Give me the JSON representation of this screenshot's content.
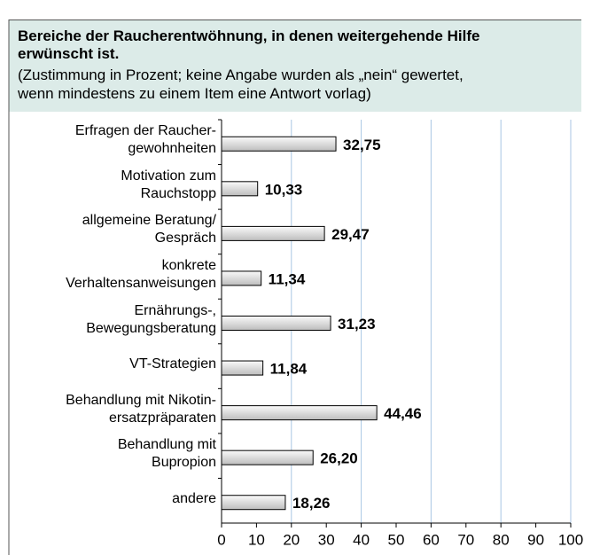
{
  "chart_data": {
    "type": "bar",
    "orientation": "horizontal",
    "title": "Bereiche der Raucherentwöhnung, in denen weitergehende Hilfe\nerwünscht ist.",
    "subtitle": "(Zustimmung in Prozent; keine Angabe wurden als „nein“ gewertet,\nwenn mindestens zu einem Item eine Antwort vorlag)",
    "categories": [
      "Erfragen der Raucher-\ngewohnheiten",
      "Motivation zum\nRauchstopp",
      "allgemeine Beratung/\nGespräch",
      "konkrete\nVerhaltensanweisungen",
      "Ernährungs-,\nBewegungsberatung",
      "VT-Strategien",
      "Behandlung mit Nikotin-\nersatzpräparaten",
      "Behandlung mit\nBupropion",
      "andere"
    ],
    "values": [
      32.75,
      10.33,
      29.47,
      11.34,
      31.23,
      11.84,
      44.46,
      26.2,
      18.26
    ],
    "value_labels": [
      "32,75",
      "10,33",
      "29,47",
      "11,34",
      "31,23",
      "11,84",
      "44,46",
      "26,20",
      "18,26"
    ],
    "xlim": [
      0,
      100
    ],
    "xticks": [
      0,
      10,
      20,
      30,
      40,
      50,
      60,
      70,
      80,
      90,
      100
    ],
    "grid": true,
    "color": "#d8d8d8"
  }
}
